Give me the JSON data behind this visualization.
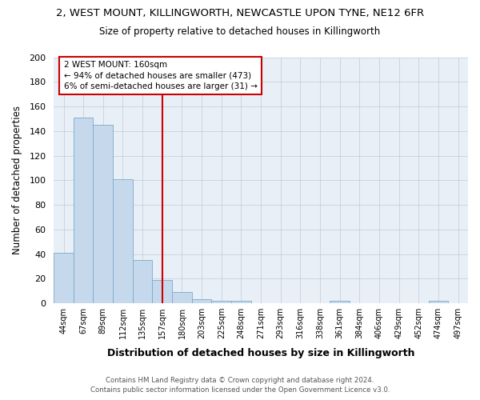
{
  "title": "2, WEST MOUNT, KILLINGWORTH, NEWCASTLE UPON TYNE, NE12 6FR",
  "subtitle": "Size of property relative to detached houses in Killingworth",
  "xlabel": "Distribution of detached houses by size in Killingworth",
  "ylabel": "Number of detached properties",
  "bar_color": "#c6d9ec",
  "bar_edge_color": "#7aaaca",
  "categories": [
    "44sqm",
    "67sqm",
    "89sqm",
    "112sqm",
    "135sqm",
    "157sqm",
    "180sqm",
    "203sqm",
    "225sqm",
    "248sqm",
    "271sqm",
    "293sqm",
    "316sqm",
    "338sqm",
    "361sqm",
    "384sqm",
    "406sqm",
    "429sqm",
    "452sqm",
    "474sqm",
    "497sqm"
  ],
  "values": [
    41,
    151,
    145,
    101,
    35,
    19,
    9,
    3,
    2,
    2,
    0,
    0,
    0,
    0,
    2,
    0,
    0,
    0,
    0,
    2,
    0
  ],
  "ylim": [
    0,
    200
  ],
  "yticks": [
    0,
    20,
    40,
    60,
    80,
    100,
    120,
    140,
    160,
    180,
    200
  ],
  "property_label": "2 WEST MOUNT: 160sqm",
  "annotation_line1": "← 94% of detached houses are smaller (473)",
  "annotation_line2": "6% of semi-detached houses are larger (31) →",
  "vline_bar_index": 5,
  "annotation_box_color": "#ffffff",
  "annotation_box_edge": "#cc0000",
  "vline_color": "#cc0000",
  "footer1": "Contains HM Land Registry data © Crown copyright and database right 2024.",
  "footer2": "Contains public sector information licensed under the Open Government Licence v3.0.",
  "background_color": "#ffffff",
  "plot_bg_color": "#e8eff7",
  "grid_color": "#c0ccd8"
}
